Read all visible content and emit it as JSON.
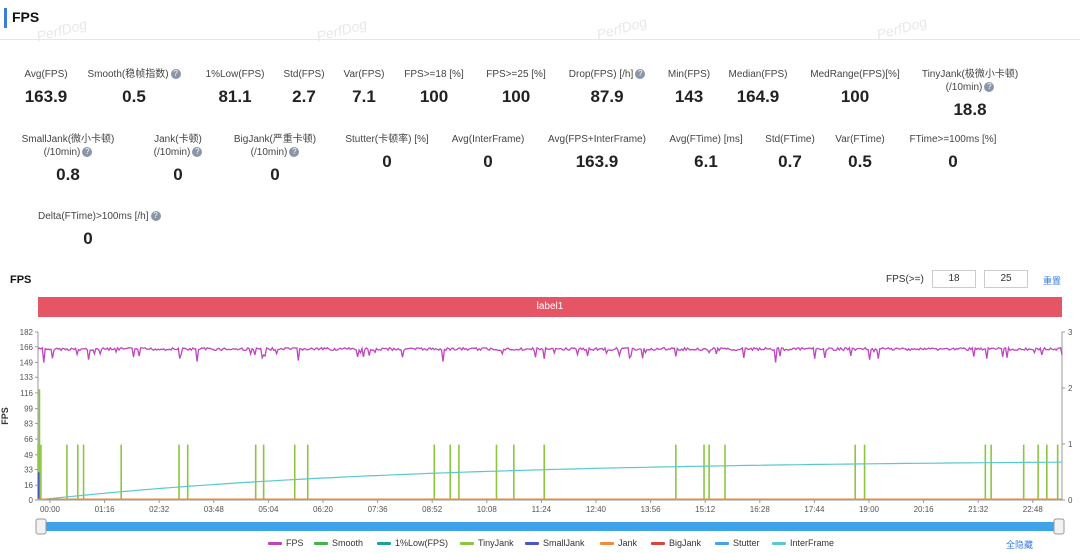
{
  "header": {
    "title": "FPS",
    "watermark": "PerfDog"
  },
  "metrics_row1": [
    {
      "label": "Avg(FPS)",
      "value": "163.9",
      "help": false
    },
    {
      "label": "Smooth(稳帧指数)",
      "value": "0.5",
      "help": true
    },
    {
      "label": "1%Low(FPS)",
      "value": "81.1",
      "help": false
    },
    {
      "label": "Std(FPS)",
      "value": "2.7",
      "help": false
    },
    {
      "label": "Var(FPS)",
      "value": "7.1",
      "help": false
    },
    {
      "label": "FPS>=18 [%]",
      "value": "100",
      "help": false
    },
    {
      "label": "FPS>=25 [%]",
      "value": "100",
      "help": false
    },
    {
      "label": "Drop(FPS) [/h]",
      "value": "87.9",
      "help": true
    },
    {
      "label": "Min(FPS)",
      "value": "143",
      "help": false
    },
    {
      "label": "Median(FPS)",
      "value": "164.9",
      "help": false
    },
    {
      "label": "MedRange(FPS)[%]",
      "value": "100",
      "help": false
    },
    {
      "label": "TinyJank(极微小卡顿)",
      "label2": "(/10min)",
      "value": "18.8",
      "help": true
    }
  ],
  "metrics_row2": [
    {
      "label": "SmallJank(微小卡顿)",
      "label2": "(/10min)",
      "value": "0.8",
      "help": true
    },
    {
      "label": "Jank(卡顿)",
      "label2": "(/10min)",
      "value": "0",
      "help": true
    },
    {
      "label": "BigJank(严重卡顿)",
      "label2": "(/10min)",
      "value": "0",
      "help": true
    },
    {
      "label": "Stutter(卡顿率) [%]",
      "value": "0",
      "help": false
    },
    {
      "label": "Avg(InterFrame)",
      "value": "0",
      "help": false
    },
    {
      "label": "Avg(FPS+InterFrame)",
      "value": "163.9",
      "help": false
    },
    {
      "label": "Avg(FTime) [ms]",
      "value": "6.1",
      "help": false
    },
    {
      "label": "Std(FTime)",
      "value": "0.7",
      "help": false
    },
    {
      "label": "Var(FTime)",
      "value": "0.5",
      "help": false
    },
    {
      "label": "FTime>=100ms [%]",
      "value": "0",
      "help": false
    }
  ],
  "metrics_row3": [
    {
      "label": "Delta(FTime)>100ms [/h]",
      "value": "0",
      "help": true
    }
  ],
  "chart_panel": {
    "title": "FPS",
    "threshold_label": "FPS(>=)",
    "threshold_low": "18",
    "threshold_high": "25",
    "reset_label": "重置",
    "label_bar": "label1",
    "hide_all": "全隐藏"
  },
  "chart_data": {
    "type": "line",
    "title": "FPS",
    "ylabel": "FPS",
    "ylim": [
      0,
      182
    ],
    "yticks": [
      "0",
      "16",
      "33",
      "49",
      "66",
      "83",
      "99",
      "116",
      "133",
      "149",
      "166",
      "182"
    ],
    "y2lim": [
      0,
      3
    ],
    "y2ticks": [
      "0",
      "1",
      "2",
      "3"
    ],
    "xlabels": [
      "00:00",
      "01:16",
      "02:32",
      "03:48",
      "05:04",
      "06:20",
      "07:36",
      "08:52",
      "10:08",
      "11:24",
      "12:40",
      "13:56",
      "15:12",
      "16:28",
      "17:44",
      "19:00",
      "20:16",
      "21:32",
      "22:48"
    ],
    "duration_seconds": 1416,
    "fps_baseline": 165,
    "fps_dips": [
      [
        8,
        149
      ],
      [
        70,
        152
      ],
      [
        140,
        156
      ],
      [
        220,
        150
      ],
      [
        310,
        154
      ],
      [
        360,
        151
      ],
      [
        450,
        155
      ],
      [
        560,
        150
      ],
      [
        700,
        153
      ],
      [
        820,
        156
      ],
      [
        1020,
        149
      ],
      [
        1150,
        152
      ],
      [
        1340,
        154
      ]
    ],
    "interframe_start": 0,
    "interframe_end": 41,
    "tinyjank_seconds": [
      0,
      4,
      40,
      55,
      63,
      115,
      195,
      207,
      301,
      312,
      355,
      373,
      548,
      570,
      582,
      634,
      658,
      700,
      882,
      921,
      928,
      950,
      1130,
      1143,
      1310,
      1318,
      1363,
      1383,
      1395,
      1410
    ],
    "tinyjank_height": 60,
    "tinyjank_peak": [
      [
        2,
        120
      ]
    ],
    "series": [
      {
        "name": "FPS",
        "color": "#c044c0"
      },
      {
        "name": "Smooth",
        "color": "#45b34a"
      },
      {
        "name": "1%Low(FPS)",
        "color": "#1aa39a"
      },
      {
        "name": "TinyJank",
        "color": "#8cc63f"
      },
      {
        "name": "SmallJank",
        "color": "#4a55c8"
      },
      {
        "name": "Jank",
        "color": "#f08a3c"
      },
      {
        "name": "BigJank",
        "color": "#d9473c"
      },
      {
        "name": "Stutter",
        "color": "#4aa0e8"
      },
      {
        "name": "InterFrame",
        "color": "#59c8d0"
      }
    ]
  }
}
